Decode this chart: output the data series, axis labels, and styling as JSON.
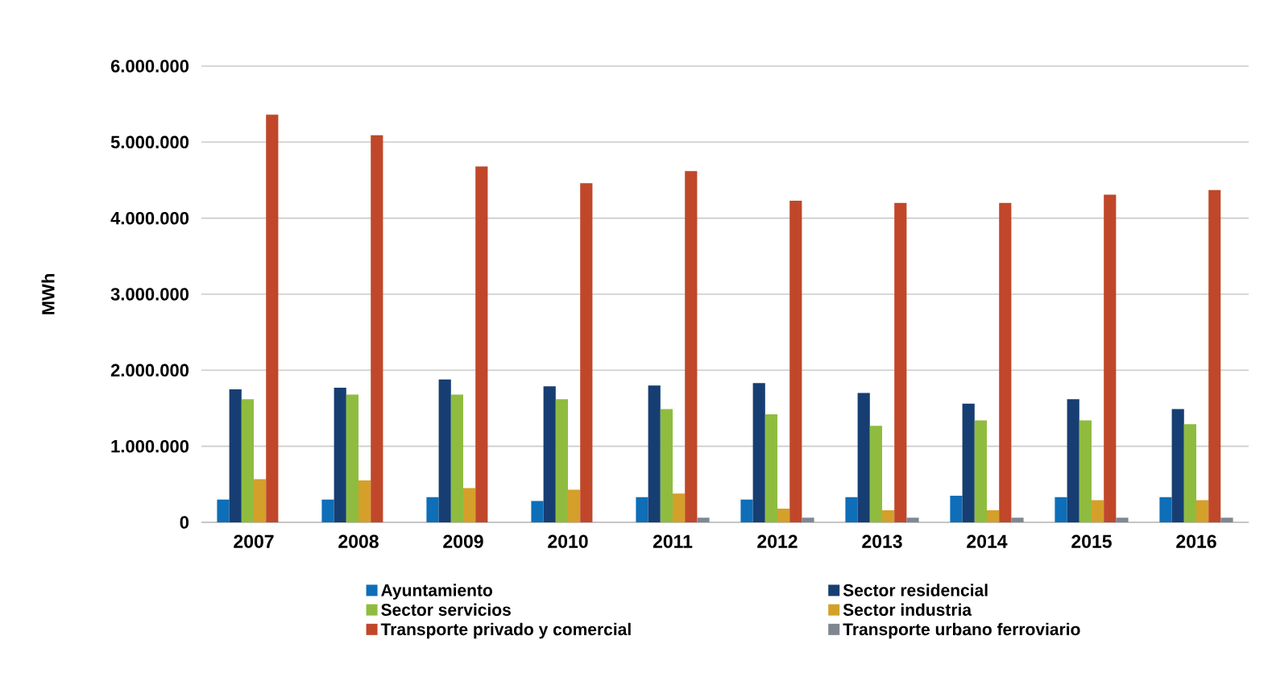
{
  "chart_data": {
    "type": "bar",
    "ylabel": "MWh",
    "categories": [
      "2007",
      "2008",
      "2009",
      "2010",
      "2011",
      "2012",
      "2013",
      "2014",
      "2015",
      "2016"
    ],
    "series": [
      {
        "name": "Ayuntamiento",
        "color": "#0e6eb8",
        "values": [
          300000,
          300000,
          330000,
          280000,
          330000,
          300000,
          330000,
          350000,
          330000,
          330000
        ]
      },
      {
        "name": "Sector residencial",
        "color": "#163e72",
        "values": [
          1750000,
          1770000,
          1880000,
          1790000,
          1800000,
          1830000,
          1700000,
          1560000,
          1620000,
          1490000
        ]
      },
      {
        "name": "Sector servicios",
        "color": "#8fbc3f",
        "values": [
          1620000,
          1680000,
          1680000,
          1620000,
          1490000,
          1420000,
          1270000,
          1340000,
          1340000,
          1290000
        ]
      },
      {
        "name": "Sector industria",
        "color": "#d4a02a",
        "values": [
          570000,
          550000,
          450000,
          430000,
          380000,
          180000,
          160000,
          160000,
          290000,
          290000
        ]
      },
      {
        "name": "Transporte privado y comercial",
        "color": "#c0472a",
        "values": [
          5360000,
          5090000,
          4680000,
          4460000,
          4620000,
          4230000,
          4200000,
          4200000,
          4310000,
          4370000
        ]
      },
      {
        "name": "Transporte urbano ferroviario",
        "color": "#7f8791",
        "values": [
          null,
          null,
          null,
          null,
          60000,
          60000,
          60000,
          60000,
          60000,
          60000
        ]
      }
    ],
    "ylim": [
      0,
      6000000
    ],
    "yticks": [
      0,
      {
        "value": 1000000,
        "label": "1.000.000"
      },
      {
        "value": 2000000,
        "label": "2.000.000"
      },
      {
        "value": 3000000,
        "label": "3.000.000"
      },
      {
        "value": 4000000,
        "label": "4.000.000"
      },
      {
        "value": 5000000,
        "label": "5.000.000"
      },
      {
        "value": 6000000,
        "label": "6.000.000"
      }
    ],
    "grid": "y",
    "legend": "bottom"
  }
}
